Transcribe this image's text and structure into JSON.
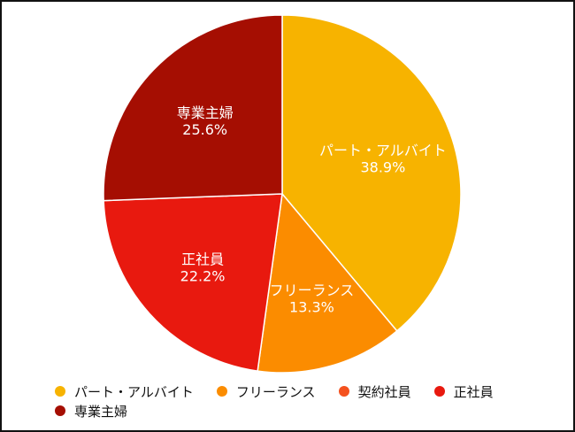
{
  "chart_data": {
    "type": "pie",
    "categories": [
      "パート・アルバイト",
      "フリーランス",
      "契約社員",
      "正社員",
      "専業主婦"
    ],
    "values": [
      38.9,
      13.3,
      0,
      22.2,
      25.6
    ],
    "value_labels": [
      "38.9%",
      "13.3%",
      "",
      "22.2%",
      "25.6%"
    ],
    "colors": [
      "#f7b300",
      "#fb8c00",
      "#f4511e",
      "#e8190f",
      "#a50e02"
    ],
    "start_angle_deg": 0,
    "direction": "clockwise",
    "legend_position": "bottom"
  }
}
